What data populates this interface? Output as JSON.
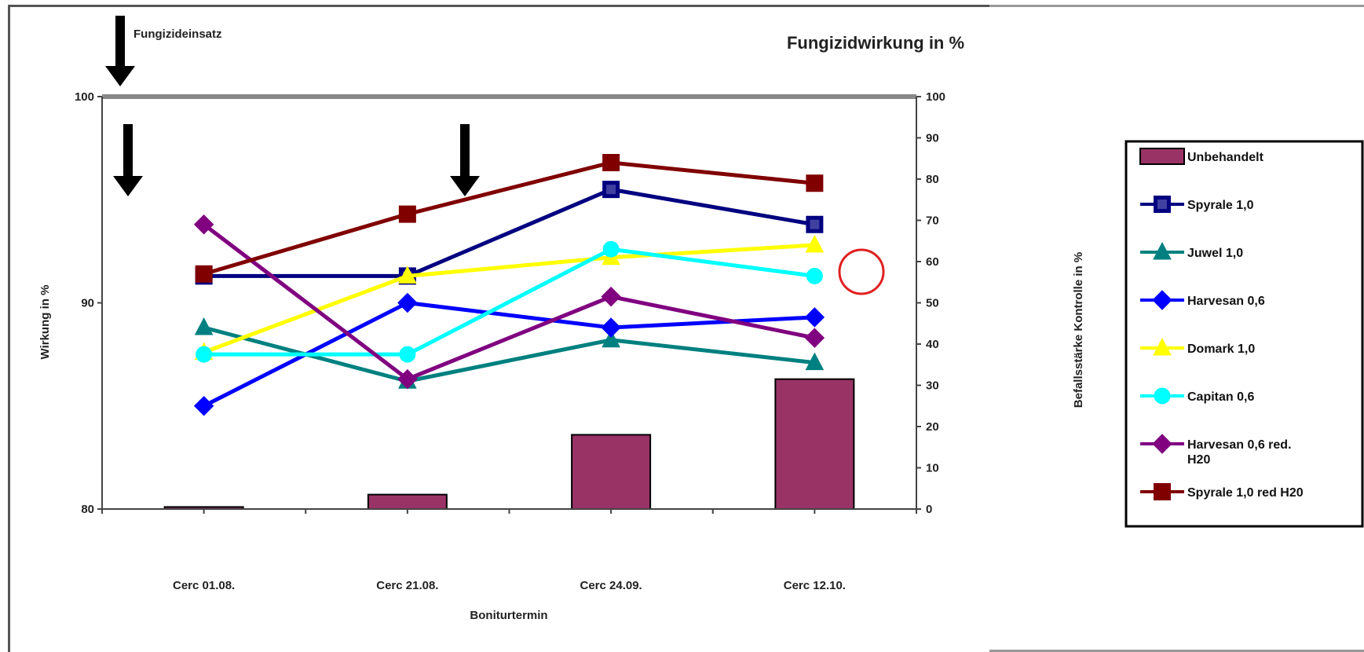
{
  "chart_data": {
    "type": "line",
    "title": "Fungizidwirkung in %",
    "annotation": "Fungizideinsatz",
    "xlabel": "Boniturtermin",
    "ylabel_left": "Wirkung in %",
    "ylabel_right": "Befallsstärke Kontrolle in %",
    "categories": [
      "Cerc 01.08.",
      "Cerc 21.08.",
      "Cerc 24.09.",
      "Cerc 12.10."
    ],
    "ylim_left": [
      80,
      100
    ],
    "yticks_left": [
      "80",
      "90",
      "100"
    ],
    "ylim_right": [
      0,
      100
    ],
    "yticks_right": [
      "0",
      "10",
      "20",
      "30",
      "40",
      "50",
      "60",
      "70",
      "80",
      "90",
      "100"
    ],
    "bars": {
      "name": "Unbehandelt",
      "color": "#993366",
      "axis": "right",
      "values": [
        0.5,
        3.5,
        18,
        31.5
      ]
    },
    "series": [
      {
        "name": "Spyrale 1,0",
        "color": "#000080",
        "marker": "square-open",
        "values": [
          91.3,
          91.3,
          95.5,
          93.8
        ]
      },
      {
        "name": "Juwel 1,0",
        "color": "#008080",
        "marker": "triangle",
        "values": [
          88.8,
          86.2,
          88.2,
          87.1
        ]
      },
      {
        "name": "Harvesan 0,6",
        "color": "#0000ff",
        "marker": "diamond",
        "values": [
          85.0,
          90.0,
          88.8,
          89.3
        ]
      },
      {
        "name": "Domark 1,0",
        "color": "#ffff00",
        "marker": "triangle",
        "values": [
          87.6,
          91.3,
          92.2,
          92.8
        ]
      },
      {
        "name": "Capitan 0,6",
        "color": "#00ffff",
        "marker": "circle",
        "values": [
          87.5,
          87.5,
          92.6,
          91.3
        ]
      },
      {
        "name": "Harvesan 0,6 red. H20",
        "color": "#800080",
        "marker": "diamond",
        "values": [
          93.8,
          86.3,
          90.3,
          88.3
        ]
      },
      {
        "name": "Spyrale 1,0 red H20",
        "color": "#800000",
        "marker": "square",
        "values": [
          91.4,
          94.3,
          96.8,
          95.8
        ]
      }
    ],
    "arrow_color": "#000000",
    "highlight_color": "#e02020",
    "grid": false,
    "legend_position": "right"
  }
}
